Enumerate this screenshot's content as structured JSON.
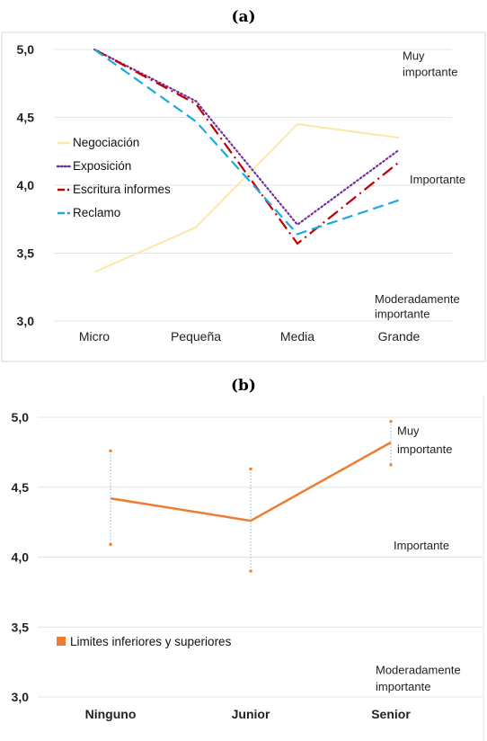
{
  "chart_data": [
    {
      "type": "line",
      "title": "(a)",
      "categories": [
        "Micro",
        "Pequeña",
        "Media",
        "Grande"
      ],
      "ylim": [
        3.0,
        5.0
      ],
      "yticks": [
        "3,0",
        "3,5",
        "4,0",
        "4,5",
        "5,0"
      ],
      "grid": true,
      "legend_position": "left-middle",
      "series": [
        {
          "name": "Negociación",
          "values": [
            3.36,
            3.69,
            4.45,
            4.35
          ],
          "color": "#fde7a6",
          "style": "solid"
        },
        {
          "name": "Exposición",
          "values": [
            5.0,
            4.62,
            3.71,
            4.26
          ],
          "color": "#7030a0",
          "style": "dotted"
        },
        {
          "name": "Escritura informes",
          "values": [
            5.0,
            4.6,
            3.57,
            4.17
          ],
          "color": "#c00000",
          "style": "dashdot"
        },
        {
          "name": "Reclamo",
          "values": [
            5.0,
            4.47,
            3.64,
            3.89
          ],
          "color": "#1fa9e0",
          "style": "dashed"
        }
      ],
      "annotations": [
        {
          "text": "Muy",
          "value": 4.95
        },
        {
          "text": "importante",
          "value": 4.83
        },
        {
          "text": "Importante",
          "value": 4.04
        },
        {
          "text": "Moderadamente",
          "value": 3.16
        },
        {
          "text": "importante",
          "value": 3.05
        }
      ]
    },
    {
      "type": "line",
      "title": "(b)",
      "categories": [
        "Ninguno",
        "Junior",
        "Senior"
      ],
      "ylim": [
        3.0,
        5.0
      ],
      "yticks": [
        "3,0",
        "3,5",
        "4,0",
        "4,5",
        "5,0"
      ],
      "grid": true,
      "legend_position": "bottom-left",
      "series": [
        {
          "name": "Limites inferiores y superiores",
          "values": [
            4.42,
            4.26,
            4.82
          ],
          "lower": [
            4.09,
            3.9,
            4.66
          ],
          "upper": [
            4.76,
            4.63,
            4.97
          ],
          "color": "#ed7d31"
        }
      ],
      "annotations": [
        {
          "text": "Muy",
          "value": 4.9
        },
        {
          "text": "importante",
          "value": 4.77
        },
        {
          "text": "Importante",
          "value": 4.08
        },
        {
          "text": "Moderadamente",
          "value": 3.19
        },
        {
          "text": "importante",
          "value": 3.07
        }
      ]
    }
  ]
}
